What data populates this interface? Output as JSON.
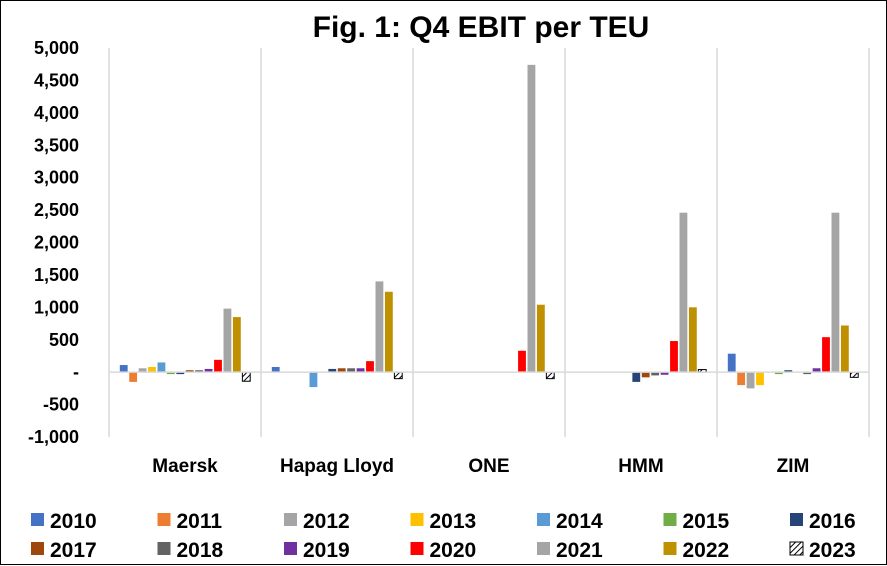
{
  "chart_data": {
    "type": "bar",
    "title": "Fig. 1: Q4 EBIT per TEU",
    "xlabel": "",
    "ylabel": "",
    "ylim": [
      -1000,
      5000
    ],
    "yticks": [
      5000,
      4500,
      4000,
      3500,
      3000,
      2500,
      2000,
      1500,
      1000,
      500,
      0,
      -500,
      -1000
    ],
    "ytick_labels": [
      "5,000",
      "4,500",
      "4,000",
      "3,500",
      "3,000",
      "2,500",
      "2,000",
      "1,500",
      "1,000",
      "500",
      "-",
      "-500",
      "-1,000"
    ],
    "grid": "vertical separators between categories",
    "legend_position": "bottom",
    "categories": [
      "Maersk",
      "Hapag Lloyd",
      "ONE",
      "HMM",
      "ZIM"
    ],
    "series": [
      {
        "name": "2010",
        "color": "#4472C4",
        "values": [
          110,
          80,
          null,
          0,
          285
        ]
      },
      {
        "name": "2011",
        "color": "#ED7D31",
        "values": [
          -150,
          0,
          null,
          0,
          -200
        ]
      },
      {
        "name": "2012",
        "color": "#A5A5A5",
        "values": [
          60,
          0,
          null,
          0,
          -250
        ]
      },
      {
        "name": "2013",
        "color": "#FFC000",
        "values": [
          80,
          0,
          null,
          0,
          -200
        ]
      },
      {
        "name": "2014",
        "color": "#5B9BD5",
        "values": [
          150,
          -230,
          null,
          0,
          0
        ]
      },
      {
        "name": "2015",
        "color": "#70AD47",
        "values": [
          -30,
          0,
          null,
          0,
          -30
        ]
      },
      {
        "name": "2016",
        "color": "#264478",
        "values": [
          -30,
          50,
          null,
          -150,
          30
        ]
      },
      {
        "name": "2017",
        "color": "#9E480E",
        "values": [
          30,
          60,
          null,
          -80,
          0
        ]
      },
      {
        "name": "2018",
        "color": "#636363",
        "values": [
          30,
          60,
          null,
          -50,
          -30
        ]
      },
      {
        "name": "2019",
        "color": "#7030A0",
        "values": [
          50,
          60,
          null,
          -40,
          60
        ]
      },
      {
        "name": "2020",
        "color": "#FF0000",
        "values": [
          190,
          170,
          330,
          480,
          540
        ]
      },
      {
        "name": "2021",
        "color": "#A5A5A5",
        "values": [
          980,
          1400,
          4740,
          2460,
          2460
        ]
      },
      {
        "name": "2022",
        "color": "#BF9000",
        "values": [
          850,
          1240,
          1040,
          1000,
          720
        ]
      },
      {
        "name": "2023",
        "color": "#000000",
        "pattern": "hatched",
        "values": [
          -140,
          -100,
          -100,
          40,
          -80
        ]
      }
    ]
  }
}
